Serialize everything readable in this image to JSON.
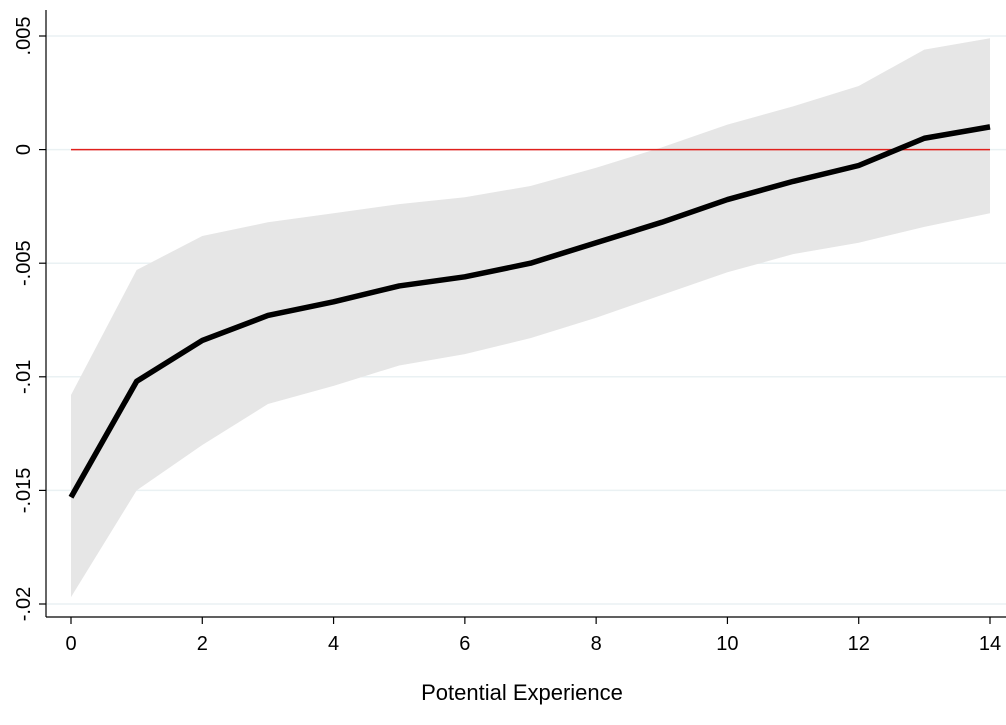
{
  "chart_data": {
    "type": "line",
    "title": "",
    "xlabel": "Potential Experience",
    "ylabel": "",
    "xlim": [
      0,
      14
    ],
    "ylim": [
      -0.02,
      0.005
    ],
    "x_ticks": [
      0,
      2,
      4,
      6,
      8,
      10,
      12,
      14
    ],
    "x_tick_labels": [
      "0",
      "2",
      "4",
      "6",
      "8",
      "10",
      "12",
      "14"
    ],
    "y_ticks": [
      -0.02,
      -0.015,
      -0.01,
      -0.005,
      0,
      0.005
    ],
    "y_tick_labels": [
      "-.02",
      "-.015",
      "-.01",
      "-.005",
      "0",
      ".005"
    ],
    "grid": true,
    "reference_line": {
      "y": 0,
      "color": "#e0201c"
    },
    "x": [
      0,
      1,
      2,
      3,
      4,
      5,
      6,
      7,
      8,
      9,
      10,
      11,
      12,
      13,
      14
    ],
    "series": [
      {
        "values": [
          -0.0153,
          -0.0102,
          -0.0084,
          -0.0073,
          -0.0067,
          -0.006,
          -0.0056,
          -0.005,
          -0.0041,
          -0.0032,
          -0.0022,
          -0.0014,
          -0.0007,
          0.0005,
          0.001
        ],
        "color": "#000000"
      }
    ],
    "confidence_band": {
      "lower": [
        -0.0197,
        -0.015,
        -0.013,
        -0.0112,
        -0.0104,
        -0.0095,
        -0.009,
        -0.0083,
        -0.0074,
        -0.0064,
        -0.0054,
        -0.0046,
        -0.0041,
        -0.0034,
        -0.0028
      ],
      "upper": [
        -0.0108,
        -0.0053,
        -0.0038,
        -0.0032,
        -0.0028,
        -0.0024,
        -0.0021,
        -0.0016,
        -0.0008,
        0.0001,
        0.0011,
        0.0019,
        0.0028,
        0.0044,
        0.0049
      ],
      "color": "#e6e6e6"
    },
    "colors": {
      "grid": "#eaf1f3",
      "axis": "#000000"
    }
  }
}
